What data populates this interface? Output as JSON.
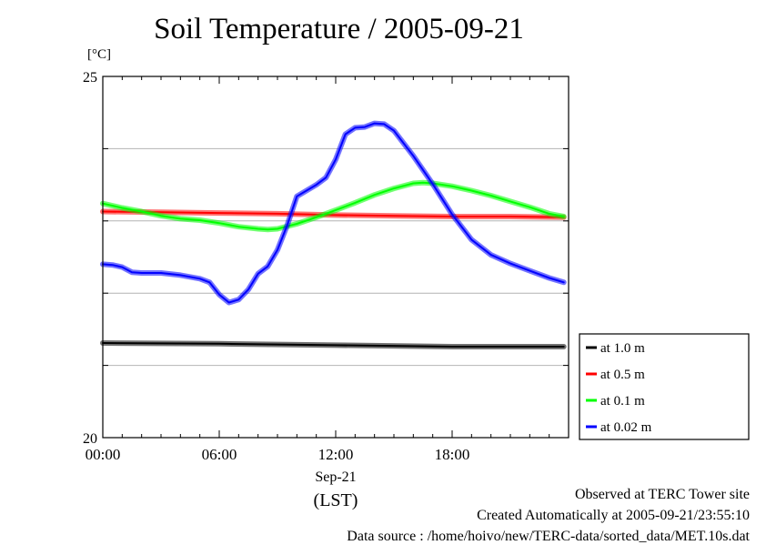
{
  "chart_data": {
    "type": "line",
    "title": "Soil Temperature / 2005-09-21",
    "ylabel": "[°C]",
    "ylim": [
      20,
      25
    ],
    "yticks": [
      {
        "value": 20,
        "label": "20"
      },
      {
        "value": 21,
        "label": ""
      },
      {
        "value": 22,
        "label": ""
      },
      {
        "value": 23,
        "label": ""
      },
      {
        "value": 24,
        "label": ""
      },
      {
        "value": 25,
        "label": "25"
      }
    ],
    "xlim": [
      0,
      24
    ],
    "xticks": [
      {
        "value": 0,
        "label": "00:00"
      },
      {
        "value": 6,
        "label": "06:00"
      },
      {
        "value": 12,
        "label": "12:00"
      },
      {
        "value": 18,
        "label": "18:00"
      }
    ],
    "xlabel_date": "Sep-21",
    "xlabel_zone": "(LST)",
    "grid": true,
    "legend_position": "right",
    "series": [
      {
        "name": "at 1.0 m",
        "color": "#000000",
        "x": [
          0,
          6,
          12,
          18,
          23.75
        ],
        "y": [
          21.31,
          21.3,
          21.28,
          21.26,
          21.26
        ]
      },
      {
        "name": "at 0.5 m",
        "color": "#ff0000",
        "x": [
          0,
          3,
          6,
          9,
          12,
          15,
          18,
          21,
          23.75
        ],
        "y": [
          23.13,
          23.12,
          23.11,
          23.1,
          23.08,
          23.07,
          23.06,
          23.06,
          23.05
        ]
      },
      {
        "name": "at 0.1 m",
        "color": "#00ff00",
        "x": [
          0,
          1,
          2,
          3,
          4,
          5,
          6,
          7,
          8,
          8.5,
          9,
          10,
          11,
          12,
          13,
          14,
          15,
          16,
          16.5,
          17,
          18,
          19,
          20,
          21,
          22,
          23,
          23.75
        ],
        "y": [
          23.24,
          23.18,
          23.13,
          23.07,
          23.03,
          23.01,
          22.97,
          22.92,
          22.89,
          22.88,
          22.89,
          22.96,
          23.05,
          23.15,
          23.25,
          23.36,
          23.45,
          23.52,
          23.53,
          23.52,
          23.48,
          23.42,
          23.35,
          23.27,
          23.19,
          23.1,
          23.06
        ]
      },
      {
        "name": "at 0.02 m",
        "color": "#0000ff",
        "x": [
          0,
          0.5,
          1,
          1.5,
          2,
          3,
          4,
          5,
          5.5,
          6,
          6.5,
          7,
          7.5,
          8,
          8.5,
          9,
          9.5,
          10,
          11,
          11.5,
          12,
          12.5,
          13,
          13.5,
          14,
          14.5,
          15,
          16,
          17,
          18,
          19,
          20,
          21,
          22,
          23,
          23.75
        ],
        "y": [
          22.4,
          22.39,
          22.36,
          22.29,
          22.28,
          22.28,
          22.25,
          22.2,
          22.15,
          21.98,
          21.87,
          21.91,
          22.05,
          22.27,
          22.37,
          22.6,
          22.94,
          23.34,
          23.5,
          23.6,
          23.85,
          24.2,
          24.29,
          24.3,
          24.35,
          24.34,
          24.25,
          23.9,
          23.51,
          23.09,
          22.74,
          22.53,
          22.41,
          22.31,
          22.21,
          22.15
        ]
      }
    ]
  },
  "notes": {
    "observed": "Observed at TERC Tower site",
    "created": "Created Automatically at 2005-09-21/23:55:10",
    "source": "Data source : /home/hoivo/new/TERC-data/sorted_data/MET.10s.dat"
  }
}
